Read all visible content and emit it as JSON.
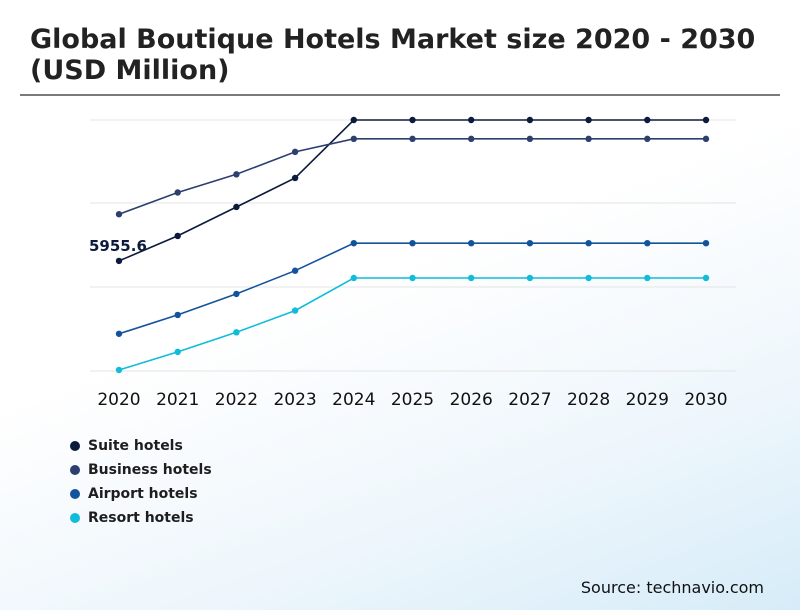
{
  "header": {
    "title": "Global Boutique Hotels Market size 2020 - 2030 (USD Million)"
  },
  "chart_data": {
    "type": "line",
    "title": "Global Boutique Hotels Market size 2020 - 2030 (USD Million)",
    "xlabel": "",
    "ylabel": "",
    "x": [
      "2020",
      "2021",
      "2022",
      "2023",
      "2024",
      "2025",
      "2026",
      "2027",
      "2028",
      "2029",
      "2030"
    ],
    "grid": true,
    "y_axis_labels_visible": false,
    "legend_position": "bottom-left",
    "series": [
      {
        "name": "Suite hotels",
        "color": "#0c1a3c",
        "values": [
          5955.6,
          6300,
          6700,
          7100,
          7900,
          7900,
          7900,
          7900,
          7900,
          7900,
          7900
        ]
      },
      {
        "name": "Business hotels",
        "color": "#2c3f6e",
        "values": [
          6600,
          6900,
          7150,
          7460,
          7640,
          7640,
          7640,
          7640,
          7640,
          7640,
          7640
        ]
      },
      {
        "name": "Airport hotels",
        "color": "#13539c",
        "values": [
          4950,
          5210,
          5500,
          5820,
          6200,
          6200,
          6200,
          6200,
          6200,
          6200,
          6200
        ]
      },
      {
        "name": "Resort hotels",
        "color": "#10bcd8",
        "values": [
          4450,
          4700,
          4970,
          5270,
          5720,
          5720,
          5720,
          5720,
          5720,
          5720,
          5720
        ]
      }
    ],
    "annotations": [
      {
        "series": "Suite hotels",
        "x": "2020",
        "text": "5955.6"
      }
    ]
  },
  "source": {
    "text": "Source: technavio.com"
  }
}
